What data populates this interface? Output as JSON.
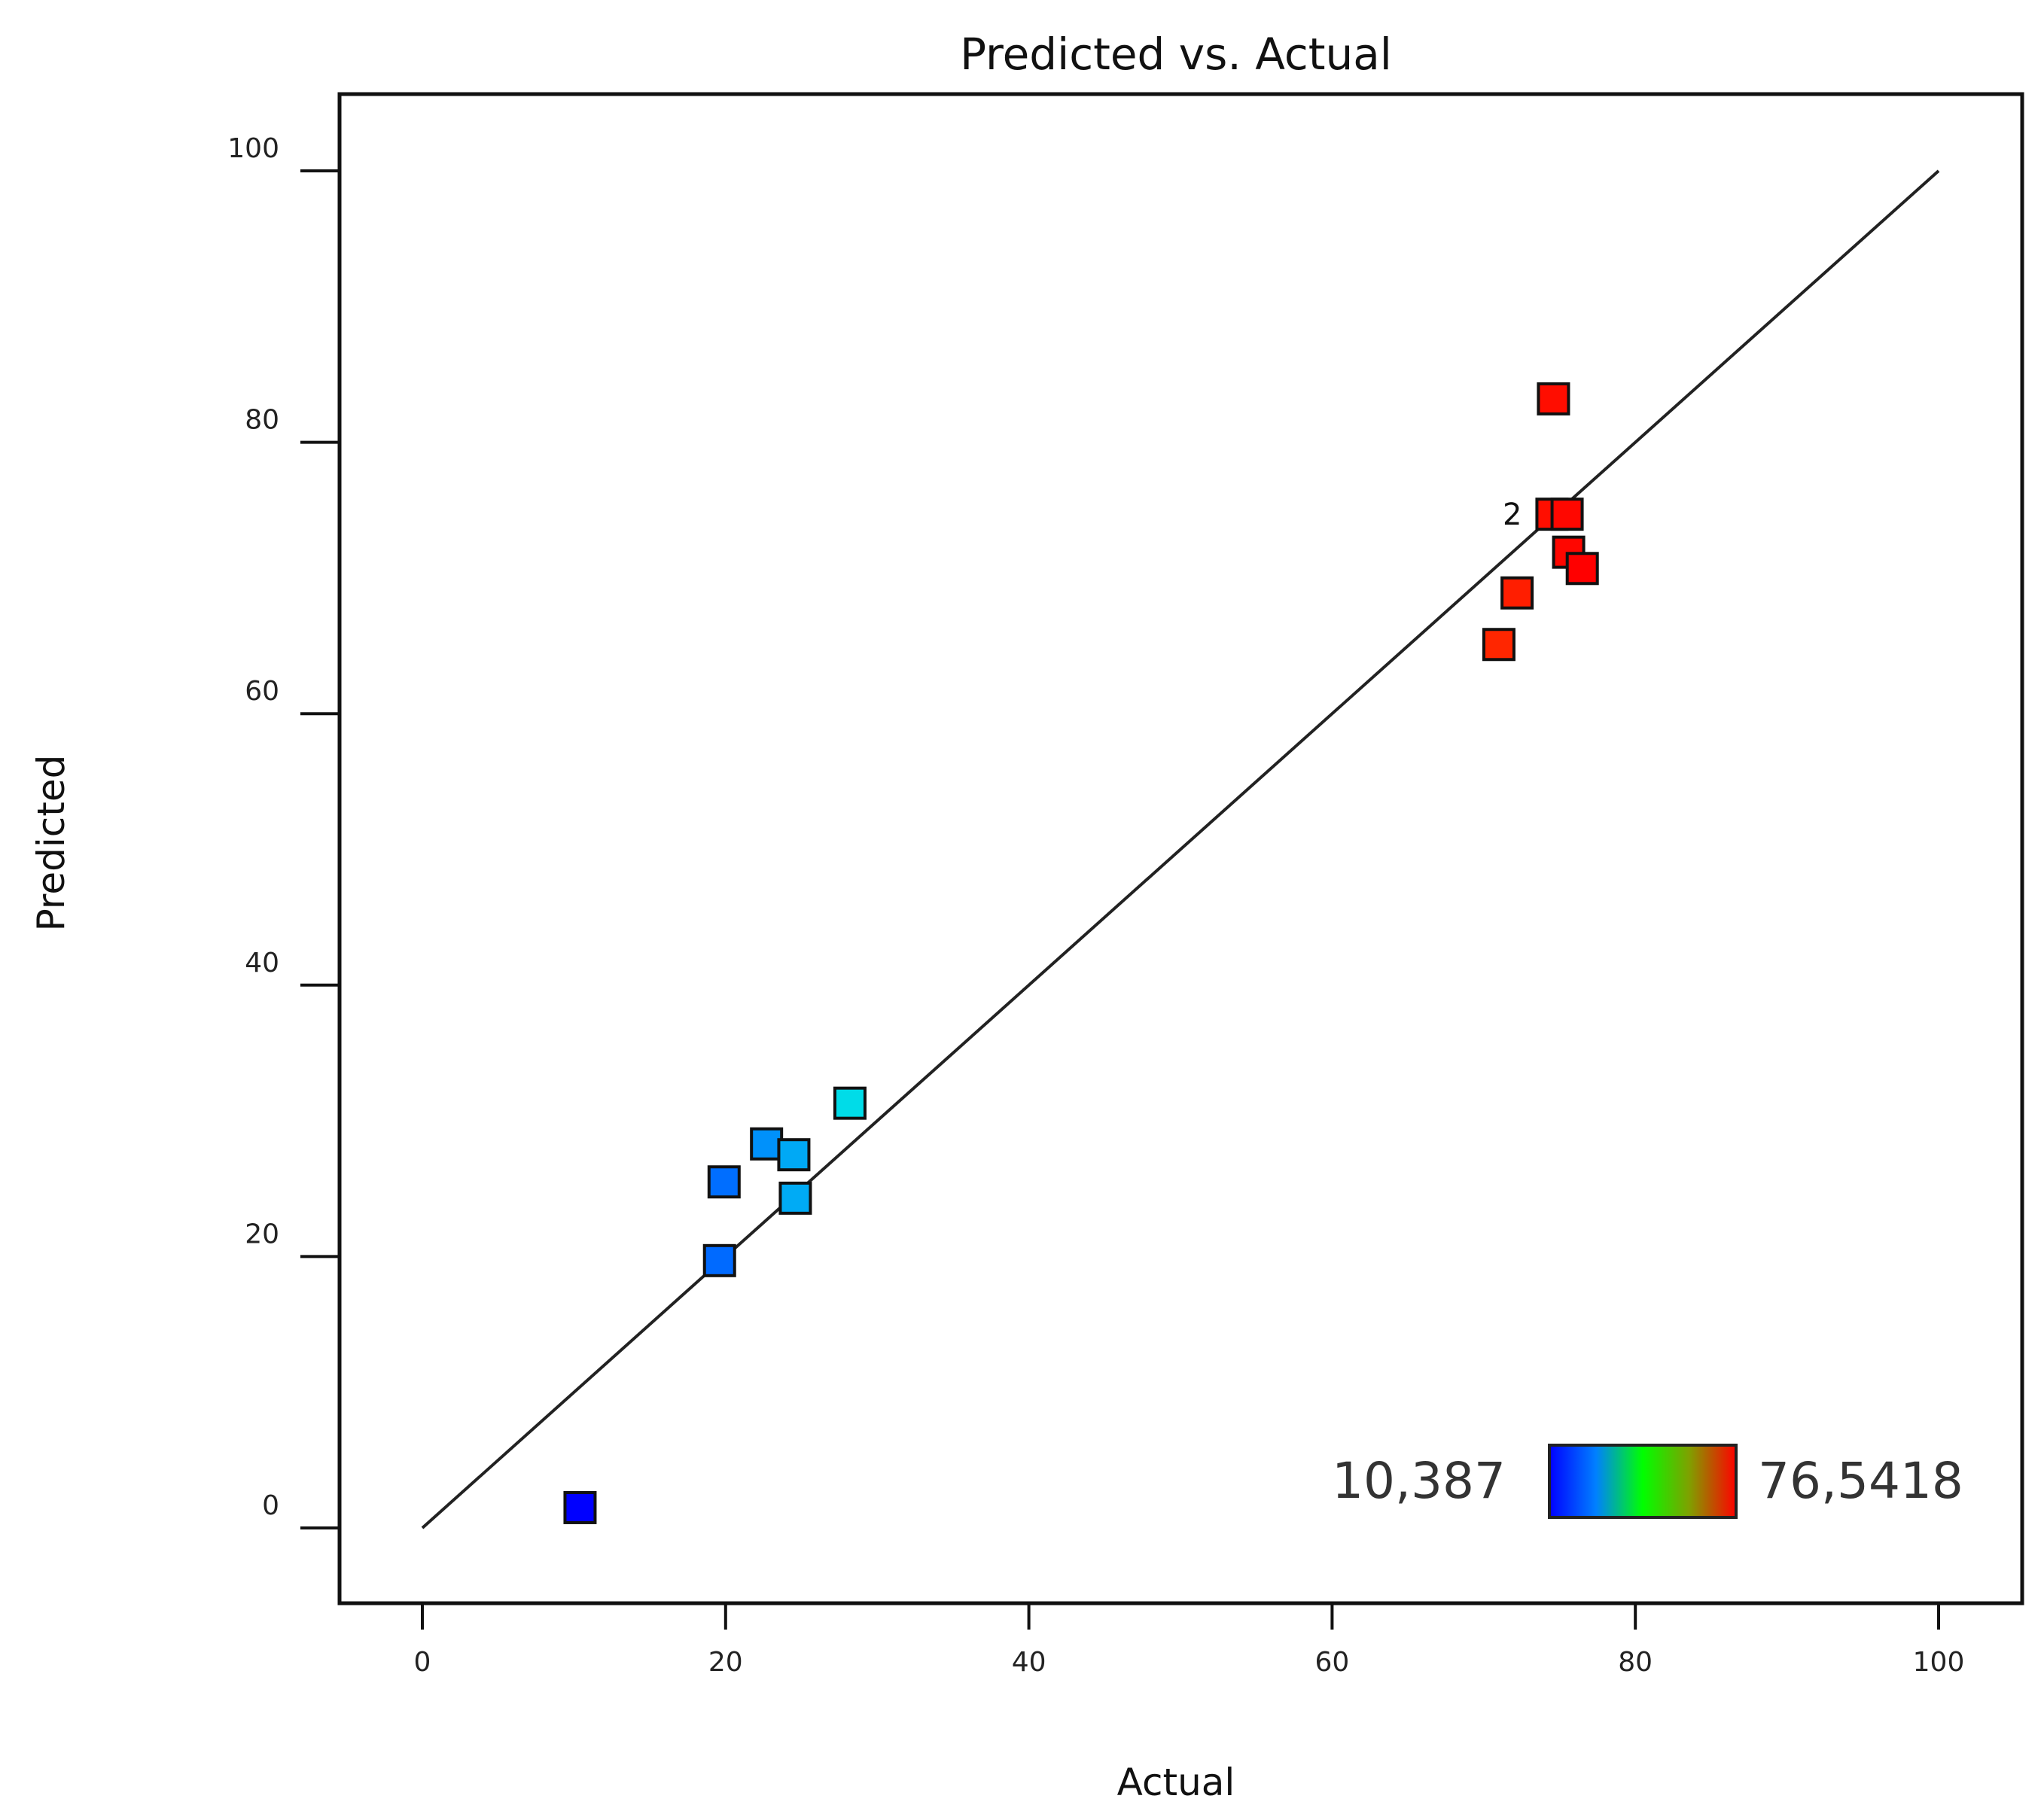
{
  "chart_data": {
    "type": "scatter",
    "title": "Predicted vs. Actual",
    "xlabel": "Actual",
    "ylabel": "Predicted",
    "xlim": [
      -5.5,
      105.5
    ],
    "ylim": [
      -5.5,
      105.5
    ],
    "xticks": [
      0,
      20,
      40,
      60,
      80,
      100
    ],
    "yticks": [
      0,
      20,
      40,
      60,
      80,
      100
    ],
    "grid": false,
    "reference_line": {
      "from": [
        0,
        0
      ],
      "to": [
        100,
        100
      ]
    },
    "points": [
      {
        "actual": 10.4,
        "predicted": 1.5,
        "color_value": 10.387
      },
      {
        "actual": 19.6,
        "predicted": 19.7,
        "color_value": 19.6
      },
      {
        "actual": 19.9,
        "predicted": 25.5,
        "color_value": 19.9
      },
      {
        "actual": 22.7,
        "predicted": 28.3,
        "color_value": 22.7
      },
      {
        "actual": 24.5,
        "predicted": 27.5,
        "color_value": 24.5
      },
      {
        "actual": 24.6,
        "predicted": 24.3,
        "color_value": 24.6
      },
      {
        "actual": 28.2,
        "predicted": 31.3,
        "color_value": 28.2
      },
      {
        "actual": 71.0,
        "predicted": 65.1,
        "color_value": 71.0
      },
      {
        "actual": 72.2,
        "predicted": 68.9,
        "color_value": 72.2
      },
      {
        "actual": 74.6,
        "predicted": 83.2,
        "color_value": 74.6
      },
      {
        "actual": 74.5,
        "predicted": 74.7,
        "color_value": 74.5,
        "label": "2"
      },
      {
        "actual": 75.5,
        "predicted": 74.7,
        "color_value": 75.5
      },
      {
        "actual": 75.6,
        "predicted": 71.9,
        "color_value": 75.6
      },
      {
        "actual": 76.5,
        "predicted": 70.7,
        "color_value": 76.5418
      }
    ],
    "colorbar": {
      "min_label": "10,387",
      "max_label": "76,5418",
      "min": 10.387,
      "max": 76.5418,
      "position": "bottom-right"
    }
  }
}
